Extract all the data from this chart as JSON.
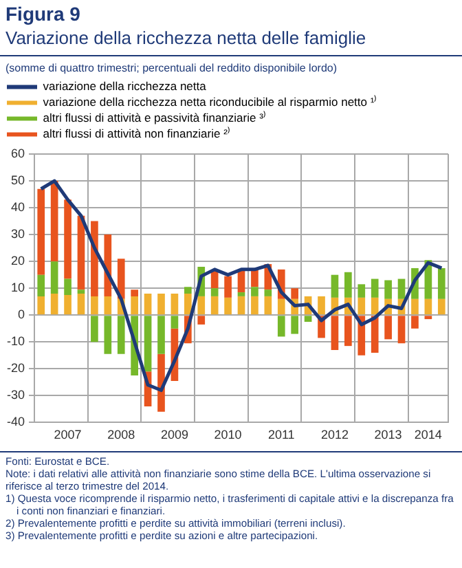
{
  "chart_data": {
    "type": "bar",
    "title": "Variazione della ricchezza netta delle famiglie",
    "subtitle": "(somme di quattro trimestri; percentuali del reddito disponibile lordo)",
    "annotations": [
      "Figura 9",
      "Fonti: Eurostat e BCE.",
      "Note: i dati relativi alle attività non finanziarie sono stime della BCE. L'ultima osservazione si riferisce al terzo trimestre del 2014.",
      "1) Questa voce ricomprende il risparmio netto, i trasferimenti di capitale attivi e la discrepanza fra i conti non finanziari e finanziari.",
      "2) Prevalentemente profitti e perdite su attività immobiliari (terreni inclusi).",
      "3) Prevalentemente profitti e perdite su azioni e altre partecipazioni."
    ],
    "categories": [
      null,
      null,
      "2007",
      null,
      null,
      null,
      "2008",
      null,
      null,
      null,
      "2009",
      null,
      null,
      null,
      "2010",
      null,
      null,
      null,
      "2011",
      null,
      null,
      null,
      "2012",
      null,
      null,
      null,
      "2013",
      null,
      null,
      "2014",
      null
    ],
    "stacked": true,
    "ylim": [
      -40,
      60
    ],
    "yticks": [
      -40,
      -30,
      -20,
      -10,
      0,
      10,
      20,
      30,
      40,
      50,
      60
    ],
    "grid": true,
    "legend": "top left",
    "marker": "none",
    "line_style": "solid",
    "series": [
      {
        "name": "variazione della ricchezza netta",
        "type": "line",
        "color": "#1f3a78",
        "values": [
          47,
          50,
          43,
          37,
          25,
          15.5,
          6,
          -10,
          -26,
          -28,
          -17,
          -5,
          14.5,
          17,
          15,
          17,
          17,
          18.5,
          8.5,
          3.5,
          4,
          -2,
          2,
          4,
          -3.5,
          -1,
          3.5,
          2.5,
          13,
          19.5,
          17.5
        ]
      },
      {
        "name": "variazione della ricchezza netta riconducibile al risparmio netto ¹⁾",
        "color": "#f0b030",
        "values": [
          7,
          8,
          7.5,
          8,
          7,
          7,
          6,
          7,
          8,
          8,
          8,
          8,
          7,
          7,
          6.5,
          7,
          7,
          7,
          6,
          6,
          7,
          7,
          6.5,
          6.5,
          6.5,
          6.5,
          6,
          6,
          6,
          6,
          6
        ]
      },
      {
        "name": "altri flussi di attività e passività finanziarie ³⁾",
        "color": "#76b82a",
        "values": [
          8,
          12,
          6,
          1.5,
          -10,
          -14.5,
          -14.5,
          -22.5,
          -21,
          -14.5,
          -5,
          2.5,
          11,
          3,
          0,
          1.5,
          3.5,
          2.5,
          -8,
          -7,
          -2.5,
          0,
          8.5,
          9.5,
          5,
          7,
          7,
          7.5,
          11.5,
          14.5,
          11.5
        ]
      },
      {
        "name": "altri flussi di attività non finanziarie ²⁾",
        "color": "#e8541e",
        "values": [
          32,
          30,
          29.5,
          27.5,
          28,
          23,
          15,
          2.5,
          -13,
          -21.5,
          -19.5,
          -10.5,
          -3.5,
          6.5,
          8,
          8,
          7,
          9.5,
          11,
          4,
          0,
          -8.5,
          -13,
          -11.5,
          -15,
          -14,
          -9,
          -10.5,
          -5,
          -1.5,
          0
        ]
      }
    ]
  }
}
